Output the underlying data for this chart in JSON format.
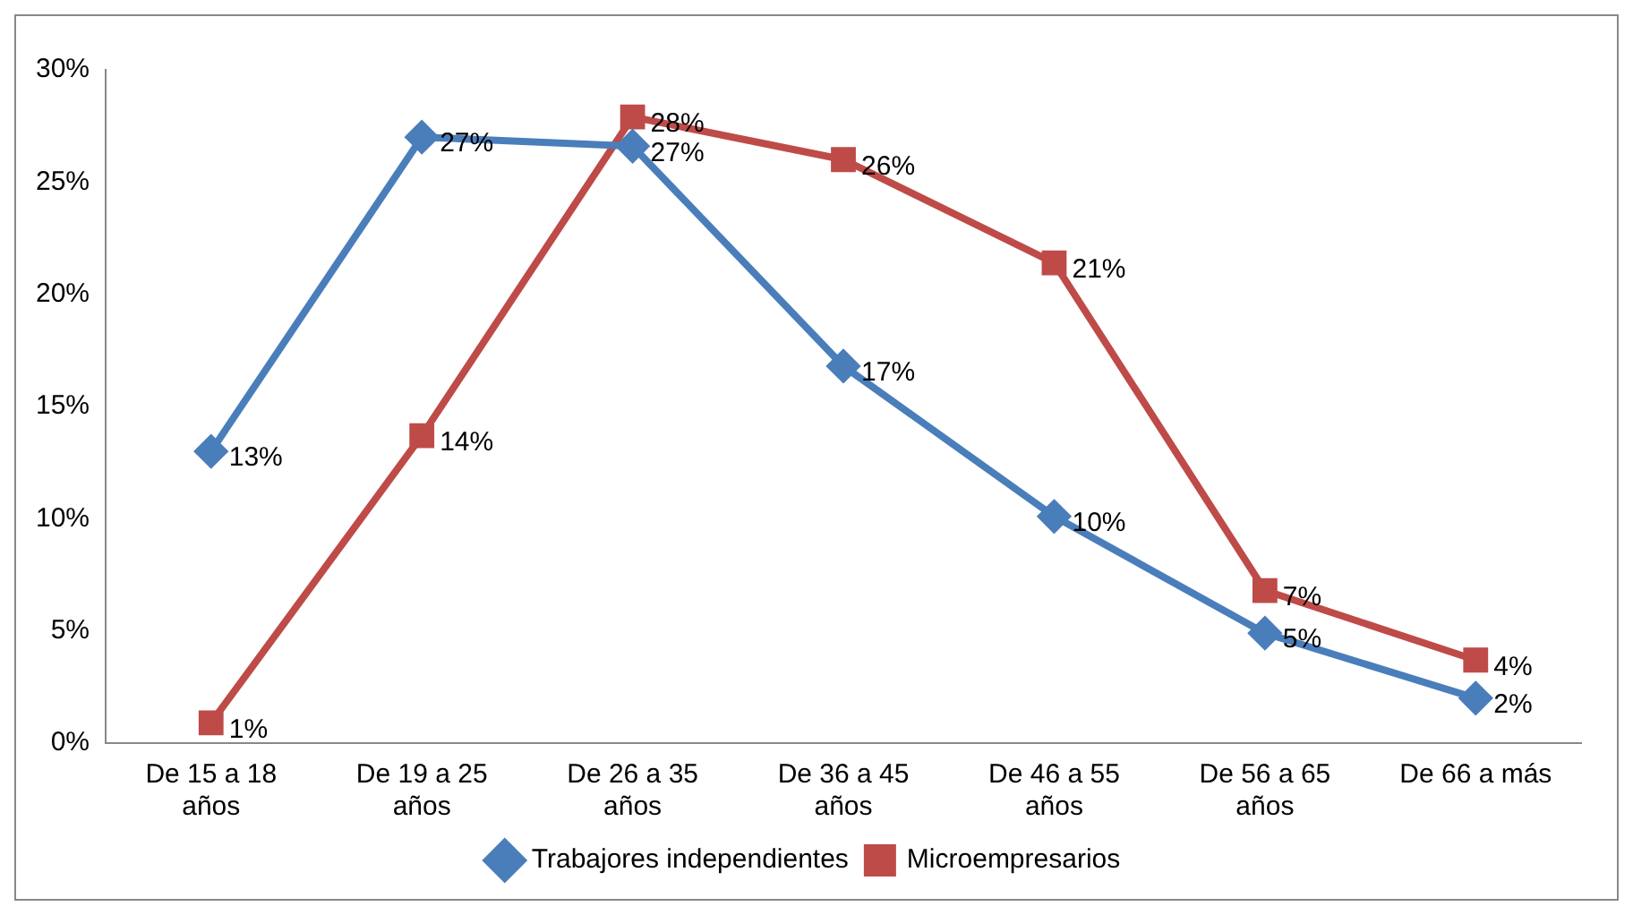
{
  "chart_data": {
    "type": "line",
    "categories": [
      "De 15 a 18 años",
      "De 19 a 25 años",
      "De 26 a 35 años",
      "De 36 a 45 años",
      "De 46 a 55 años",
      "De 56 a 65 años",
      "De 66 a más"
    ],
    "series": [
      {
        "name": "Trabajores independientes",
        "color": "#4a7ebb",
        "marker": "diamond",
        "values": [
          13,
          27,
          26.6,
          16.8,
          10.1,
          4.9,
          2
        ],
        "value_labels": [
          "13%",
          "27%",
          "27%",
          "17%",
          "10%",
          "5%",
          "2%"
        ]
      },
      {
        "name": "Microempresarios",
        "color": "#be4b48",
        "marker": "square",
        "values": [
          0.9,
          13.7,
          27.9,
          26,
          21.4,
          6.8,
          3.7
        ],
        "value_labels": [
          "1%",
          "14%",
          "28%",
          "26%",
          "21%",
          "7%",
          "4%"
        ]
      }
    ],
    "ylim": [
      0,
      30
    ],
    "yticks": [
      {
        "value": 0,
        "label": "0%"
      },
      {
        "value": 5,
        "label": "5%"
      },
      {
        "value": 10,
        "label": "10%"
      },
      {
        "value": 15,
        "label": "15%"
      },
      {
        "value": 20,
        "label": "20%"
      },
      {
        "value": 25,
        "label": "25%"
      },
      {
        "value": 30,
        "label": "30%"
      }
    ],
    "grid": false,
    "legend": "bottom",
    "line_style": "solid"
  }
}
